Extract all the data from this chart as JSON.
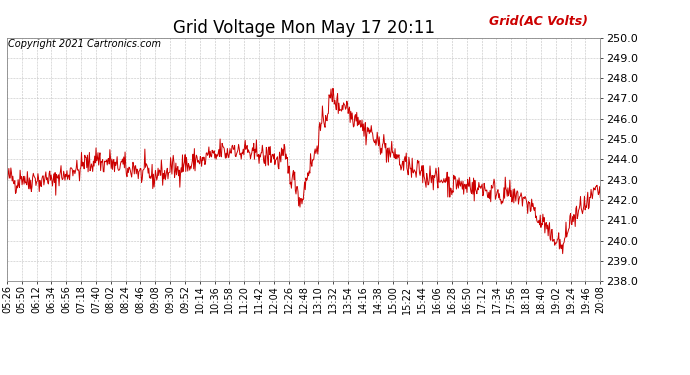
{
  "title": "Grid Voltage Mon May 17 20:11",
  "copyright_text": "Copyright 2021 Cartronics.com",
  "legend_label": "Grid(AC Volts)",
  "legend_color": "#cc0000",
  "line_color": "#cc0000",
  "background_color": "#ffffff",
  "grid_color": "#bbbbbb",
  "ylim": [
    238.0,
    250.0
  ],
  "yticks": [
    238.0,
    239.0,
    240.0,
    241.0,
    242.0,
    243.0,
    244.0,
    245.0,
    246.0,
    247.0,
    248.0,
    249.0,
    250.0
  ],
  "xtick_labels": [
    "05:26",
    "05:50",
    "06:12",
    "06:34",
    "06:56",
    "07:18",
    "07:40",
    "08:02",
    "08:24",
    "08:46",
    "09:08",
    "09:30",
    "09:52",
    "10:14",
    "10:36",
    "10:58",
    "11:20",
    "11:42",
    "12:04",
    "12:26",
    "12:48",
    "13:10",
    "13:32",
    "13:54",
    "14:16",
    "14:38",
    "15:00",
    "15:22",
    "15:44",
    "16:06",
    "16:28",
    "16:50",
    "17:12",
    "17:34",
    "17:56",
    "18:18",
    "18:40",
    "19:02",
    "19:24",
    "19:46",
    "20:08"
  ],
  "title_fontsize": 12,
  "copyright_fontsize": 7,
  "legend_fontsize": 9,
  "tick_fontsize": 7,
  "ytick_fontsize": 8,
  "line_width": 0.7
}
